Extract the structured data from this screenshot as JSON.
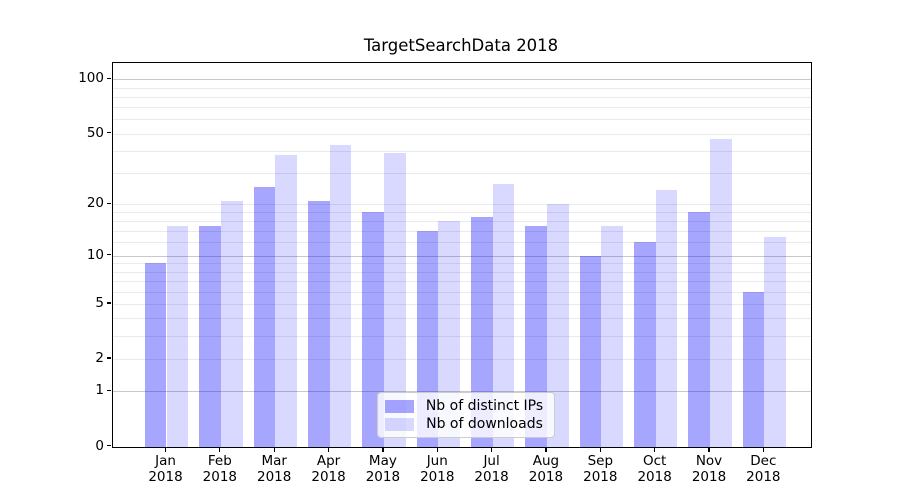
{
  "chart_data": {
    "type": "bar",
    "title": "TargetSearchData 2018",
    "categories": [
      "Jan",
      "Feb",
      "Mar",
      "Apr",
      "May",
      "Jun",
      "Jul",
      "Aug",
      "Sep",
      "Oct",
      "Nov",
      "Dec"
    ],
    "xtick_line2": "2018",
    "series": [
      {
        "name": "Nb of distinct IPs",
        "color": "rgba(0,0,255,0.35)",
        "hex_on_white": "#a6a6ff",
        "values": [
          9,
          15,
          25,
          21,
          18,
          14,
          17,
          15,
          10,
          12,
          18,
          6
        ]
      },
      {
        "name": "Nb of downloads",
        "color": "rgba(0,0,255,0.15)",
        "hex_on_white": "#d9d9ff",
        "values": [
          15,
          21,
          38,
          43,
          39,
          16,
          26,
          20,
          15,
          24,
          47,
          13
        ]
      }
    ],
    "xlabel": "",
    "ylabel": "",
    "yscale": "log1p",
    "ylim": [
      0,
      123
    ],
    "yticks_labeled": [
      100,
      50,
      20,
      10,
      5,
      2,
      1,
      0
    ],
    "yticks_major_grid": [
      100,
      10,
      1
    ],
    "yticks_minor_grid": [
      2,
      3,
      4,
      5,
      6,
      7,
      8,
      9,
      12,
      14,
      16,
      18,
      20,
      30,
      40,
      50,
      60,
      70,
      80,
      90
    ],
    "grid": true,
    "legend": {
      "position": "lower center",
      "entries": [
        "Nb of distinct IPs",
        "Nb of downloads"
      ]
    }
  },
  "colors": {
    "grid_major": "#c8c8c8",
    "grid_minor": "#eaeaea",
    "axis_spine": "#000000",
    "legend_border": "#cccccc",
    "legend_bg": "rgba(255,255,255,0.8)",
    "text": "#000000"
  }
}
